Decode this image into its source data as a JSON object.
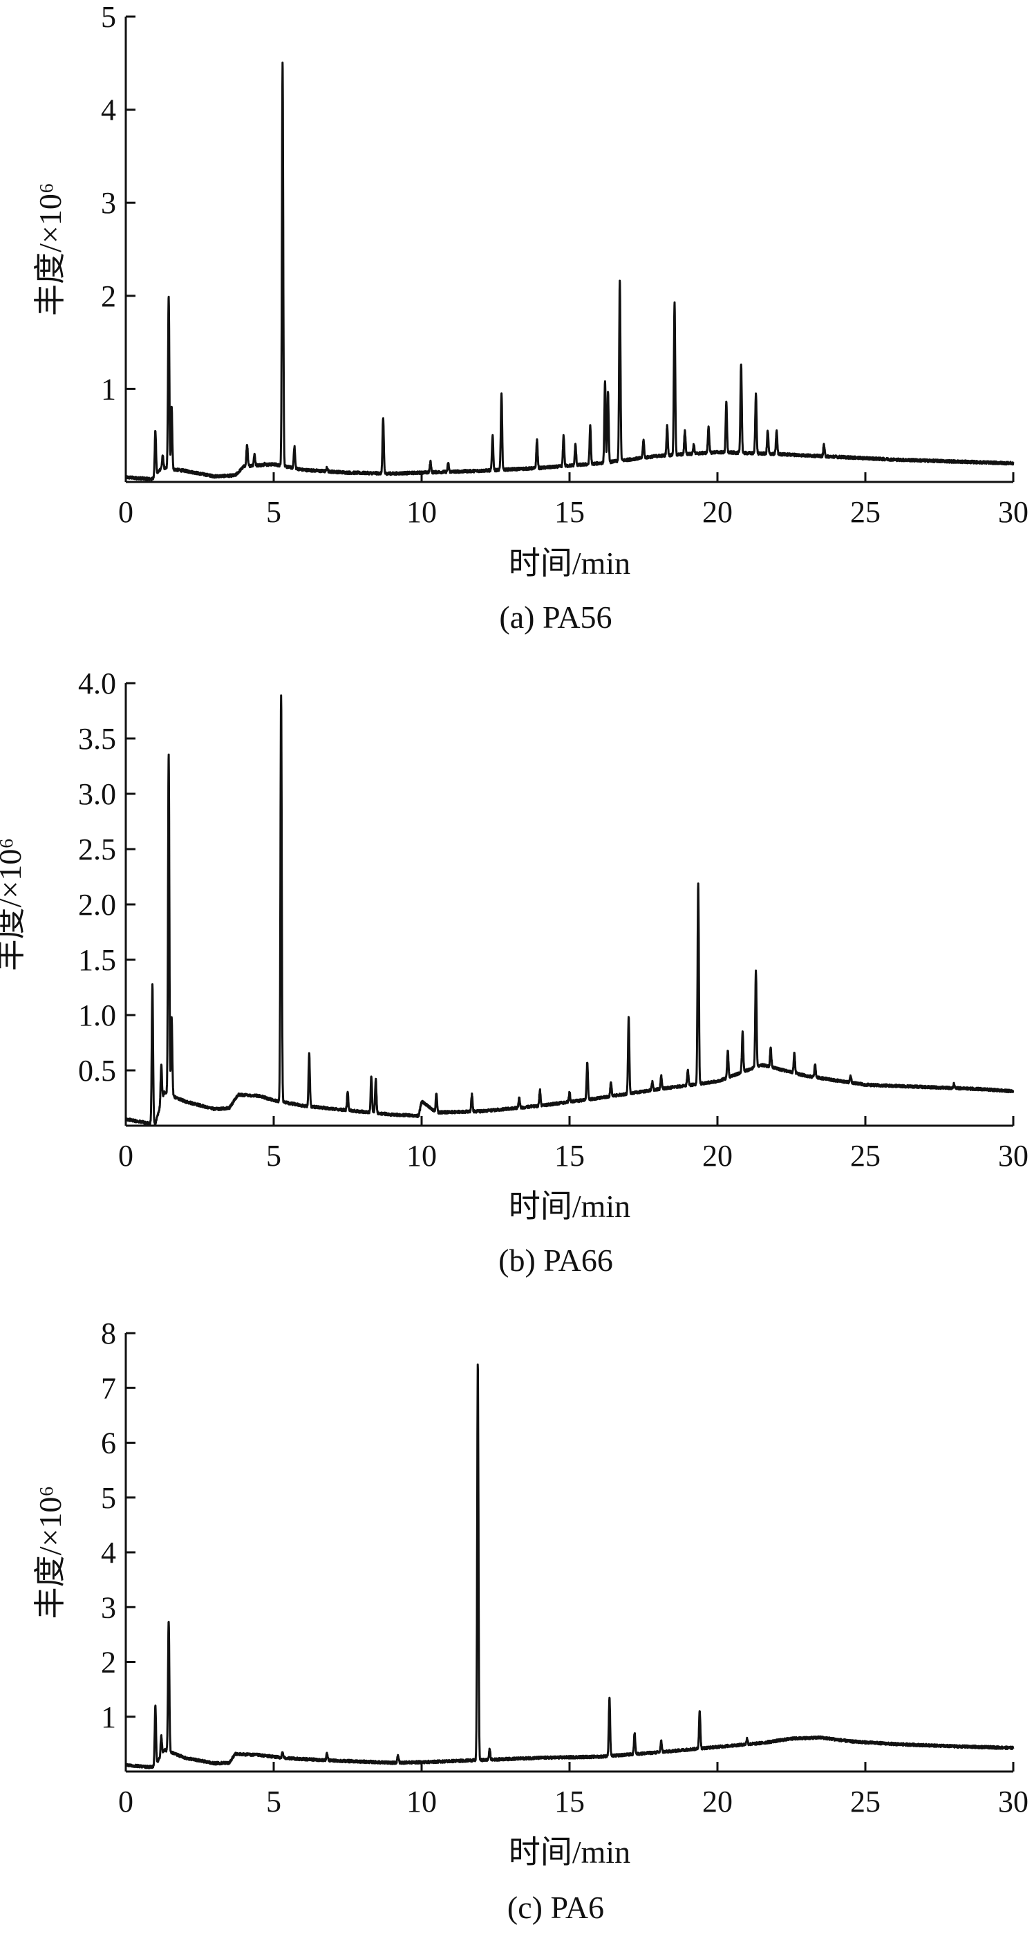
{
  "chart_data": [
    {
      "type": "line",
      "caption": "(a) PA56",
      "xlabel": "时间/min",
      "ylabel": "丰度/×10⁶",
      "xlim": [
        0,
        30
      ],
      "ylim": [
        0,
        5
      ],
      "xticks": [
        "0",
        "5",
        "10",
        "15",
        "20",
        "25",
        "30"
      ],
      "yticks": [
        "1",
        "2",
        "3",
        "4",
        "5"
      ],
      "yticks_values": [
        1,
        2,
        3,
        4,
        5
      ],
      "series": [
        {
          "baseline": [
            [
              0,
              0.05
            ],
            [
              0.9,
              0.03
            ],
            [
              1.2,
              0.15
            ],
            [
              2.0,
              0.12
            ],
            [
              3.0,
              0.06
            ],
            [
              3.7,
              0.07
            ],
            [
              4.0,
              0.17
            ],
            [
              5.0,
              0.19
            ],
            [
              6.0,
              0.13
            ],
            [
              7.5,
              0.1
            ],
            [
              9.0,
              0.09
            ],
            [
              10.0,
              0.1
            ],
            [
              12.0,
              0.12
            ],
            [
              14.0,
              0.15
            ],
            [
              16.0,
              0.2
            ],
            [
              18.0,
              0.28
            ],
            [
              20.0,
              0.32
            ],
            [
              22.0,
              0.3
            ],
            [
              24.0,
              0.27
            ],
            [
              26.0,
              0.24
            ],
            [
              28.0,
              0.22
            ],
            [
              30.0,
              0.2
            ]
          ],
          "peaks": [
            [
              1.0,
              0.55
            ],
            [
              1.25,
              0.28
            ],
            [
              1.45,
              1.99
            ],
            [
              1.55,
              0.8
            ],
            [
              4.1,
              0.4
            ],
            [
              4.35,
              0.3
            ],
            [
              4.7,
              0.2
            ],
            [
              5.3,
              4.52
            ],
            [
              5.7,
              0.38
            ],
            [
              6.8,
              0.15
            ],
            [
              8.7,
              0.68
            ],
            [
              10.3,
              0.22
            ],
            [
              10.9,
              0.2
            ],
            [
              12.4,
              0.5
            ],
            [
              12.7,
              0.95
            ],
            [
              13.9,
              0.45
            ],
            [
              14.8,
              0.5
            ],
            [
              15.2,
              0.4
            ],
            [
              15.7,
              0.6
            ],
            [
              16.2,
              1.07
            ],
            [
              16.3,
              0.98
            ],
            [
              16.7,
              2.17
            ],
            [
              17.5,
              0.45
            ],
            [
              18.3,
              0.6
            ],
            [
              18.55,
              1.93
            ],
            [
              18.9,
              0.55
            ],
            [
              19.2,
              0.4
            ],
            [
              19.7,
              0.6
            ],
            [
              20.3,
              0.85
            ],
            [
              20.8,
              1.28
            ],
            [
              21.3,
              0.95
            ],
            [
              21.7,
              0.55
            ],
            [
              22.0,
              0.55
            ],
            [
              23.6,
              0.4
            ]
          ]
        }
      ]
    },
    {
      "type": "line",
      "caption": "(b) PA66",
      "xlabel": "时间/min",
      "ylabel": "丰度/×10⁶",
      "xlim": [
        0,
        30
      ],
      "ylim": [
        0,
        4
      ],
      "xticks": [
        "0",
        "5",
        "10",
        "15",
        "20",
        "25",
        "30"
      ],
      "yticks": [
        "0.5",
        "1.0",
        "1.5",
        "2.0",
        "2.5",
        "3.0",
        "3.5",
        "4.0"
      ],
      "yticks_values": [
        0.5,
        1.0,
        1.5,
        2.0,
        2.5,
        3.0,
        3.5,
        4.0
      ],
      "series": [
        {
          "baseline": [
            [
              0,
              0.06
            ],
            [
              0.8,
              0.02
            ],
            [
              1.0,
              0.02
            ],
            [
              1.3,
              0.3
            ],
            [
              2.0,
              0.22
            ],
            [
              3.0,
              0.15
            ],
            [
              3.5,
              0.16
            ],
            [
              3.8,
              0.28
            ],
            [
              4.5,
              0.27
            ],
            [
              5.0,
              0.23
            ],
            [
              6.0,
              0.18
            ],
            [
              7.5,
              0.14
            ],
            [
              9.0,
              0.1
            ],
            [
              9.9,
              0.09
            ],
            [
              10.0,
              0.22
            ],
            [
              10.5,
              0.12
            ],
            [
              12.0,
              0.13
            ],
            [
              14.0,
              0.18
            ],
            [
              16.0,
              0.25
            ],
            [
              18.0,
              0.33
            ],
            [
              20.0,
              0.4
            ],
            [
              21.5,
              0.55
            ],
            [
              23.0,
              0.45
            ],
            [
              25.0,
              0.37
            ],
            [
              27.0,
              0.35
            ],
            [
              29.0,
              0.33
            ],
            [
              30.0,
              0.31
            ]
          ],
          "peaks": [
            [
              0.9,
              1.27
            ],
            [
              1.2,
              0.55
            ],
            [
              1.45,
              3.37
            ],
            [
              1.55,
              0.98
            ],
            [
              5.25,
              3.89
            ],
            [
              6.2,
              0.65
            ],
            [
              7.5,
              0.3
            ],
            [
              8.3,
              0.45
            ],
            [
              8.45,
              0.42
            ],
            [
              10.5,
              0.3
            ],
            [
              11.7,
              0.28
            ],
            [
              13.3,
              0.25
            ],
            [
              14.0,
              0.32
            ],
            [
              15.0,
              0.3
            ],
            [
              15.6,
              0.57
            ],
            [
              16.4,
              0.4
            ],
            [
              17.0,
              0.98
            ],
            [
              17.8,
              0.4
            ],
            [
              18.1,
              0.45
            ],
            [
              19.0,
              0.5
            ],
            [
              19.35,
              2.2
            ],
            [
              20.35,
              0.68
            ],
            [
              20.85,
              0.85
            ],
            [
              21.3,
              1.4
            ],
            [
              21.8,
              0.7
            ],
            [
              22.6,
              0.66
            ],
            [
              23.3,
              0.55
            ],
            [
              24.5,
              0.45
            ],
            [
              28.0,
              0.38
            ]
          ]
        }
      ]
    },
    {
      "type": "line",
      "caption": "(c) PA6",
      "xlabel": "时间/min",
      "ylabel": "丰度/×10⁶",
      "xlim": [
        0,
        30
      ],
      "ylim": [
        0,
        8
      ],
      "xticks": [
        "0",
        "5",
        "10",
        "15",
        "20",
        "25",
        "30"
      ],
      "yticks": [
        "1",
        "2",
        "3",
        "4",
        "5",
        "6",
        "7",
        "8"
      ],
      "yticks_values": [
        1,
        2,
        3,
        4,
        5,
        6,
        7,
        8
      ],
      "series": [
        {
          "baseline": [
            [
              0,
              0.12
            ],
            [
              0.8,
              0.08
            ],
            [
              1.0,
              0.1
            ],
            [
              1.3,
              0.4
            ],
            [
              2.0,
              0.25
            ],
            [
              3.0,
              0.15
            ],
            [
              3.5,
              0.16
            ],
            [
              3.7,
              0.32
            ],
            [
              4.5,
              0.3
            ],
            [
              5.5,
              0.24
            ],
            [
              7.0,
              0.2
            ],
            [
              9.0,
              0.16
            ],
            [
              10.0,
              0.17
            ],
            [
              11.5,
              0.2
            ],
            [
              12.5,
              0.22
            ],
            [
              14.0,
              0.25
            ],
            [
              16.0,
              0.27
            ],
            [
              18.0,
              0.35
            ],
            [
              20.0,
              0.45
            ],
            [
              21.5,
              0.52
            ],
            [
              22.5,
              0.6
            ],
            [
              23.5,
              0.62
            ],
            [
              24.5,
              0.55
            ],
            [
              26.0,
              0.5
            ],
            [
              28.0,
              0.46
            ],
            [
              30.0,
              0.43
            ]
          ],
          "peaks": [
            [
              1.0,
              1.2
            ],
            [
              1.2,
              0.65
            ],
            [
              1.45,
              2.76
            ],
            [
              5.3,
              0.35
            ],
            [
              6.8,
              0.32
            ],
            [
              9.2,
              0.3
            ],
            [
              11.9,
              7.44
            ],
            [
              12.3,
              0.4
            ],
            [
              16.35,
              1.35
            ],
            [
              17.2,
              0.7
            ],
            [
              18.1,
              0.55
            ],
            [
              19.4,
              1.12
            ],
            [
              21.0,
              0.6
            ]
          ]
        }
      ]
    }
  ]
}
